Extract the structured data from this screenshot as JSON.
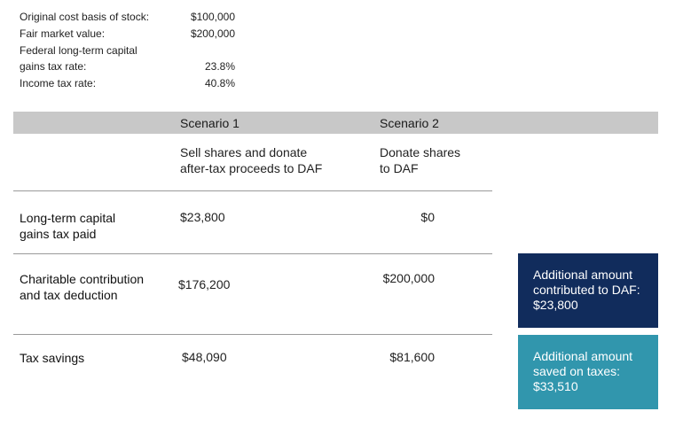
{
  "assumptions": [
    {
      "label": "Original cost basis of stock:",
      "value": "$100,000"
    },
    {
      "label": "Fair market value:",
      "value": "$200,000"
    },
    {
      "label": "Federal long-term capital",
      "value": ""
    },
    {
      "label": "gains tax rate:",
      "value": "23.8%"
    },
    {
      "label": "Income tax rate:",
      "value": "40.8%"
    }
  ],
  "scenarios": [
    {
      "title": "Scenario 1",
      "desc1": "Sell shares and donate",
      "desc2": "after-tax proceeds to DAF"
    },
    {
      "title": "Scenario 2",
      "desc1": "Donate shares",
      "desc2": "to DAF"
    }
  ],
  "rows": [
    {
      "label1": "Long-term capital",
      "label2": "gains tax paid",
      "s1": "$23,800",
      "s2": "$0"
    },
    {
      "label1": "Charitable contribution",
      "label2": "and tax deduction",
      "s1": "$176,200",
      "s2": "$200,000"
    },
    {
      "label1": "Tax savings",
      "label2": "",
      "s1": "$48,090",
      "s2": "$81,600"
    }
  ],
  "callouts": [
    {
      "line1": "Additional amount",
      "line2": "contributed to DAF:",
      "line3": "$23,800",
      "color": "#112c5c"
    },
    {
      "line1": "Additional amount",
      "line2": "saved on taxes:",
      "line3": "$33,510",
      "color": "#3196ad"
    }
  ]
}
